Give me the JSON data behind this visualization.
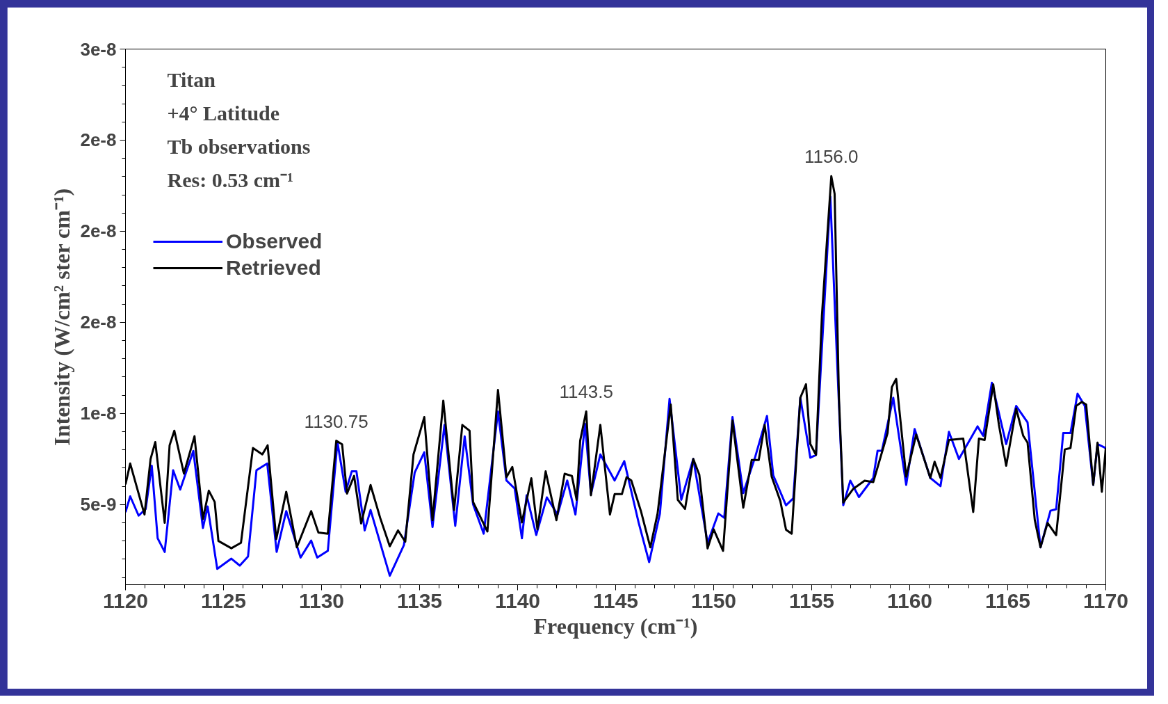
{
  "chart_data": {
    "type": "line",
    "xlabel": "Frequency (cm⁻¹)",
    "ylabel": "Intensity (W/cm² ster cm⁻¹)",
    "annotations": [
      "Titan",
      "+4° Latitude",
      "Tb observations",
      "Res:  0.53 cm⁻¹",
      {
        "text": "1130.75",
        "x": 1130.75,
        "y": 8.5e-09
      },
      {
        "text": "1143.5",
        "x": 1143.5,
        "y": 1.011e-08
      },
      {
        "text": "1156.0",
        "x": 1156.0,
        "y": 2.302e-08
      }
    ],
    "xlim": [
      1120,
      1170
    ],
    "xticks": [
      1120,
      1125,
      1130,
      1135,
      1140,
      1145,
      1150,
      1155,
      1160,
      1165,
      1170
    ],
    "ylim": [
      6e-10,
      3e-08
    ],
    "yticks": [
      {
        "value": 5e-09,
        "label": "5e-9"
      },
      {
        "value": 1e-08,
        "label": "1e-8"
      },
      {
        "value": 1.5e-08,
        "label": "2e-8"
      },
      {
        "value": 2e-08,
        "label": "2e-8"
      },
      {
        "value": 2.5e-08,
        "label": "2e-8"
      },
      {
        "value": 3e-08,
        "label": "3e-8"
      }
    ],
    "grid": false,
    "legend": "top left",
    "line_style": "solid",
    "marker": "none",
    "series": [
      {
        "name": "Observed",
        "color": "#0000ff",
        "x": [
          1120.0,
          1120.24,
          1120.67,
          1121.03,
          1121.34,
          1121.64,
          1122.0,
          1122.43,
          1122.79,
          1123.46,
          1123.95,
          1124.19,
          1124.68,
          1125.4,
          1125.83,
          1126.25,
          1126.68,
          1127.23,
          1127.71,
          1128.2,
          1128.93,
          1129.47,
          1129.78,
          1130.32,
          1130.81,
          1131.23,
          1131.54,
          1131.78,
          1132.2,
          1132.5,
          1133.48,
          1134.2,
          1134.75,
          1135.24,
          1135.66,
          1136.27,
          1136.82,
          1137.3,
          1137.73,
          1138.27,
          1139.0,
          1139.43,
          1139.85,
          1140.22,
          1140.46,
          1140.95,
          1141.49,
          1142.04,
          1142.53,
          1142.95,
          1143.44,
          1143.74,
          1144.22,
          1144.95,
          1145.44,
          1146.17,
          1146.71,
          1147.26,
          1147.75,
          1148.35,
          1148.96,
          1149.69,
          1150.24,
          1150.54,
          1150.96,
          1151.51,
          1152.12,
          1152.72,
          1153.04,
          1153.69,
          1154.06,
          1154.42,
          1154.93,
          1155.22,
          1155.95,
          1156.24,
          1156.61,
          1156.97,
          1157.41,
          1158.14,
          1158.36,
          1158.58,
          1159.16,
          1159.82,
          1160.25,
          1161.05,
          1161.57,
          1162.0,
          1162.51,
          1163.46,
          1163.75,
          1164.19,
          1164.92,
          1165.43,
          1166.01,
          1166.67,
          1167.18,
          1167.47,
          1167.83,
          1168.2,
          1168.56,
          1168.93,
          1169.36,
          1169.58,
          1170.0
        ],
        "values": [
          4.58e-09,
          5.45e-09,
          4.39e-09,
          4.76e-09,
          7.13e-09,
          3.15e-09,
          2.4e-09,
          6.88e-09,
          5.82e-09,
          7.94e-09,
          3.71e-09,
          4.89e-09,
          1.47e-09,
          2.03e-09,
          1.65e-09,
          2.15e-09,
          6.88e-09,
          7.25e-09,
          2.4e-09,
          4.64e-09,
          2.09e-09,
          3.02e-09,
          2.09e-09,
          2.46e-09,
          8.43e-09,
          5.7e-09,
          6.82e-09,
          6.82e-09,
          3.58e-09,
          4.7e-09,
          1.09e-09,
          2.77e-09,
          6.75e-09,
          7.87e-09,
          3.77e-09,
          9.37e-09,
          3.83e-09,
          8.74e-09,
          5.01e-09,
          3.4e-09,
          1.011e-08,
          6.32e-09,
          5.88e-09,
          3.15e-09,
          5.51e-09,
          3.33e-09,
          5.39e-09,
          4.45e-09,
          6.32e-09,
          4.45e-09,
          9.43e-09,
          5.57e-09,
          7.75e-09,
          6.32e-09,
          7.38e-09,
          4.02e-09,
          1.84e-09,
          4.51e-09,
          1.08e-08,
          5.26e-09,
          7.5e-09,
          2.9e-09,
          4.51e-09,
          4.27e-09,
          9.8e-09,
          5.63e-09,
          7.62e-09,
          9.86e-09,
          6.6e-09,
          4.96e-09,
          5.34e-09,
          1.086e-08,
          7.57e-09,
          7.72e-09,
          2.19e-08,
          1.429e-08,
          4.96e-09,
          6.31e-09,
          5.41e-09,
          6.46e-09,
          7.95e-09,
          7.95e-09,
          1.086e-08,
          6.08e-09,
          9.14e-09,
          6.46e-09,
          6.01e-09,
          8.99e-09,
          7.5e-09,
          9.29e-09,
          8.77e-09,
          1.168e-08,
          8.32e-09,
          1.041e-08,
          9.51e-09,
          2.65e-09,
          4.66e-09,
          4.74e-09,
          8.92e-09,
          8.92e-09,
          1.108e-08,
          1.041e-08,
          6.08e-09,
          8.32e-09,
          8.1e-09
        ]
      },
      {
        "name": "Retrieved",
        "color": "#000000",
        "x": [
          1120.0,
          1120.24,
          1120.97,
          1121.28,
          1121.52,
          1122.0,
          1122.25,
          1122.49,
          1122.98,
          1123.52,
          1123.95,
          1124.25,
          1124.55,
          1124.74,
          1125.4,
          1125.89,
          1126.5,
          1126.98,
          1127.25,
          1127.69,
          1128.2,
          1128.74,
          1129.47,
          1129.84,
          1130.32,
          1130.75,
          1131.05,
          1131.3,
          1131.66,
          1132.02,
          1132.5,
          1132.99,
          1133.48,
          1133.9,
          1134.27,
          1134.69,
          1135.24,
          1135.66,
          1136.21,
          1136.76,
          1137.18,
          1137.55,
          1137.73,
          1138.46,
          1139.0,
          1139.43,
          1139.73,
          1140.22,
          1140.7,
          1141.01,
          1141.43,
          1141.98,
          1142.4,
          1142.77,
          1143.01,
          1143.19,
          1143.5,
          1143.74,
          1144.22,
          1144.71,
          1144.95,
          1145.32,
          1145.56,
          1145.8,
          1146.29,
          1146.77,
          1147.14,
          1147.81,
          1148.17,
          1148.54,
          1148.96,
          1149.27,
          1149.69,
          1150.0,
          1150.48,
          1150.96,
          1151.51,
          1151.94,
          1152.3,
          1152.6,
          1152.96,
          1153.4,
          1153.69,
          1153.98,
          1154.42,
          1154.71,
          1154.93,
          1155.22,
          1155.52,
          1156.0,
          1156.17,
          1156.39,
          1156.61,
          1157.12,
          1157.7,
          1158.14,
          1158.87,
          1159.09,
          1159.31,
          1159.82,
          1160.33,
          1161.05,
          1161.27,
          1161.57,
          1162.0,
          1162.73,
          1163.24,
          1163.53,
          1163.82,
          1164.26,
          1164.55,
          1164.92,
          1165.43,
          1165.79,
          1166.01,
          1166.38,
          1166.67,
          1167.03,
          1167.47,
          1167.91,
          1168.2,
          1168.49,
          1168.78,
          1169.0,
          1169.36,
          1169.58,
          1169.8,
          1170.0
        ],
        "values": [
          6.1e-09,
          7.25e-09,
          4.45e-09,
          7.5e-09,
          8.43e-09,
          4e-09,
          8.25e-09,
          9.05e-09,
          6.7e-09,
          8.75e-09,
          4.2e-09,
          5.76e-09,
          5.14e-09,
          3e-09,
          2.6e-09,
          2.9e-09,
          8.1e-09,
          7.75e-09,
          8.25e-09,
          3.1e-09,
          5.7e-09,
          2.65e-09,
          4.64e-09,
          3.46e-09,
          3.4e-09,
          8.5e-09,
          8.3e-09,
          5.6e-09,
          6.57e-09,
          3.96e-09,
          6.07e-09,
          4.27e-09,
          2.71e-09,
          3.58e-09,
          2.96e-09,
          7.75e-09,
          9.8e-09,
          4.14e-09,
          1.07e-08,
          4.7e-09,
          9.37e-09,
          9.05e-09,
          5.14e-09,
          3.52e-09,
          1.129e-08,
          6.5e-09,
          7.06e-09,
          4.02e-09,
          6.44e-09,
          3.64e-09,
          6.82e-09,
          4.14e-09,
          6.69e-09,
          6.57e-09,
          5.26e-09,
          8.5e-09,
          1.011e-08,
          5.51e-09,
          9.37e-09,
          4.45e-09,
          5.57e-09,
          5.57e-09,
          6.5e-09,
          6.32e-09,
          4.64e-09,
          2.65e-09,
          4.51e-09,
          1.049e-08,
          5.26e-09,
          4.76e-09,
          7.5e-09,
          6.63e-09,
          2.59e-09,
          3.64e-09,
          2.46e-09,
          9.61e-09,
          4.83e-09,
          7.44e-09,
          7.44e-09,
          9.37e-09,
          6.53e-09,
          5.19e-09,
          3.62e-09,
          3.4e-09,
          1.086e-08,
          1.16e-08,
          8.32e-09,
          7.72e-09,
          1.534e-08,
          2.302e-08,
          2.205e-08,
          1.086e-08,
          5.11e-09,
          5.86e-09,
          6.31e-09,
          6.23e-09,
          8.92e-09,
          1.145e-08,
          1.19e-08,
          6.53e-09,
          8.84e-09,
          6.46e-09,
          7.35e-09,
          6.46e-09,
          8.54e-09,
          8.62e-09,
          4.59e-09,
          8.62e-09,
          8.54e-09,
          1.16e-08,
          9.37e-09,
          7.13e-09,
          1.026e-08,
          8.77e-09,
          8.4e-09,
          4.14e-09,
          2.65e-09,
          3.99e-09,
          3.32e-09,
          8.02e-09,
          8.1e-09,
          1.041e-08,
          1.063e-08,
          1.049e-08,
          6.08e-09,
          8.4e-09,
          5.7e-09,
          8.1e-09
        ]
      }
    ]
  }
}
